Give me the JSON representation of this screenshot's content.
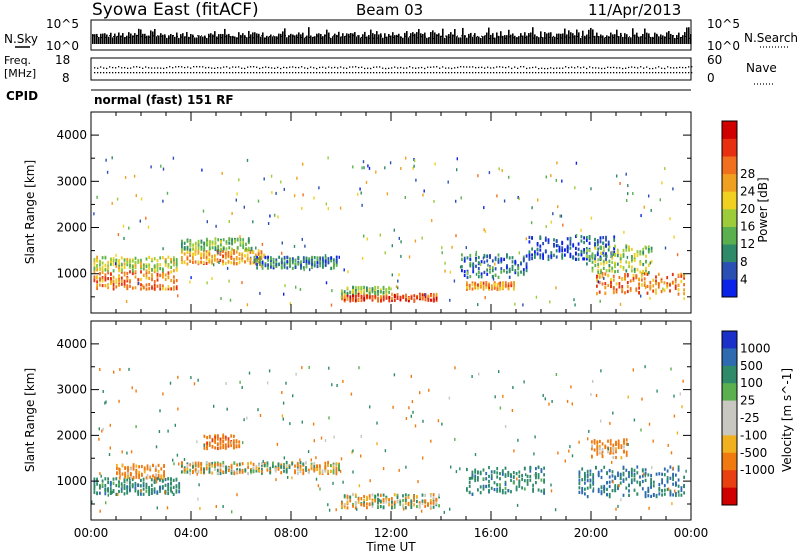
{
  "header": {
    "title": "Syowa East (fitACF)",
    "beam": "Beam 03",
    "date": "11/Apr/2013"
  },
  "top_panels": {
    "nsky_label": "N.Sky",
    "nsky_ticks": [
      "10^5",
      "10^0"
    ],
    "nsearch_label": "N.Search",
    "nsearch_ticks": [
      "10^5",
      "10^0"
    ],
    "freq_label_line1": "Freq.",
    "freq_label_line2": "[MHz]",
    "freq_ticks": [
      "18",
      "8"
    ],
    "nave_label": "Nave",
    "nave_ticks": [
      "60",
      "0"
    ],
    "cpid_label": "CPID",
    "cpid_text": "normal (fast) 151 RF"
  },
  "x_axis": {
    "label": "Time UT",
    "ticks": [
      "00:00",
      "04:00",
      "08:00",
      "12:00",
      "16:00",
      "20:00",
      "00:00"
    ]
  },
  "chart_data": [
    {
      "type": "heatmap",
      "panel": "power",
      "ylabel": "Slant Range [km]",
      "y_ticks": [
        1000,
        2000,
        3000,
        4000
      ],
      "ylim": [
        150,
        4500
      ],
      "xlim": [
        0,
        24
      ],
      "colorbar_label": "Power [dB]",
      "colorbar_ticks": [
        "4",
        "8",
        "12",
        "16",
        "20",
        "24",
        "28"
      ],
      "colorbar_colors": [
        "#0b22e8",
        "#2a50b4",
        "#2e8a68",
        "#5ab04e",
        "#9ccc3a",
        "#f0d020",
        "#f0a020",
        "#f07020",
        "#e83010",
        "#d00000"
      ],
      "echo_regions": [
        {
          "t0": 0.1,
          "t1": 3.5,
          "r0": 650,
          "r1": 1050,
          "value": 24
        },
        {
          "t0": 0.1,
          "t1": 3.5,
          "r0": 1050,
          "r1": 1350,
          "value": 16
        },
        {
          "t0": 3.6,
          "t1": 7.0,
          "r0": 1200,
          "r1": 1500,
          "value": 22
        },
        {
          "t0": 3.6,
          "t1": 6.5,
          "r0": 1500,
          "r1": 1750,
          "value": 13
        },
        {
          "t0": 6.5,
          "t1": 9.9,
          "r0": 1100,
          "r1": 1350,
          "value": 9
        },
        {
          "t0": 10.0,
          "t1": 13.9,
          "r0": 400,
          "r1": 550,
          "value": 26
        },
        {
          "t0": 10.0,
          "t1": 12.0,
          "r0": 550,
          "r1": 700,
          "value": 14
        },
        {
          "t0": 15.0,
          "t1": 17.0,
          "r0": 650,
          "r1": 800,
          "value": 22
        },
        {
          "t0": 14.8,
          "t1": 17.5,
          "r0": 900,
          "r1": 1400,
          "value": 8
        },
        {
          "t0": 17.5,
          "t1": 21.0,
          "r0": 1300,
          "r1": 1800,
          "value": 6
        },
        {
          "t0": 20.2,
          "t1": 23.8,
          "r0": 550,
          "r1": 1000,
          "value": 24
        },
        {
          "t0": 19.8,
          "t1": 22.5,
          "r0": 1000,
          "r1": 1600,
          "value": 15
        }
      ]
    },
    {
      "type": "heatmap",
      "panel": "velocity",
      "ylabel": "Slant Range [km]",
      "y_ticks": [
        1000,
        2000,
        3000,
        4000
      ],
      "ylim": [
        150,
        4500
      ],
      "xlim": [
        0,
        24
      ],
      "colorbar_label": "Velocity [m s^-1]",
      "colorbar_ticks": [
        "1000",
        "500",
        "100",
        "25",
        "-25",
        "-100",
        "-500",
        "-1000"
      ],
      "colorbar_colors": [
        "#1a30c8",
        "#2e6ab0",
        "#2e8a68",
        "#5ab04e",
        "#c8c8c0",
        "#c8c8c0",
        "#f0b020",
        "#f07a10",
        "#e84010",
        "#d00000"
      ],
      "echo_regions": [
        {
          "t0": 0.1,
          "t1": 3.6,
          "r0": 700,
          "r1": 1050,
          "value": 200
        },
        {
          "t0": 1.0,
          "t1": 3.0,
          "r0": 1050,
          "r1": 1350,
          "value": -150
        },
        {
          "t0": 3.6,
          "t1": 10.0,
          "r0": 1150,
          "r1": 1400,
          "value": 0
        },
        {
          "t0": 4.5,
          "t1": 6.0,
          "r0": 1700,
          "r1": 2000,
          "value": -200
        },
        {
          "t0": 10.0,
          "t1": 14.0,
          "r0": 400,
          "r1": 700,
          "value": 0
        },
        {
          "t0": 15.0,
          "t1": 18.2,
          "r0": 700,
          "r1": 1300,
          "value": 200
        },
        {
          "t0": 19.5,
          "t1": 23.8,
          "r0": 650,
          "r1": 1300,
          "value": 300
        },
        {
          "t0": 20.0,
          "t1": 21.5,
          "r0": 1500,
          "r1": 1900,
          "value": -150
        }
      ]
    }
  ]
}
